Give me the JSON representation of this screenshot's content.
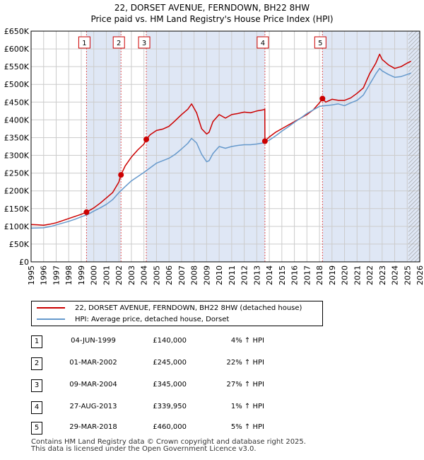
{
  "header": {
    "title_line1": "22, DORSET AVENUE, FERNDOWN, BH22 8HW",
    "title_line2": "Price paid vs. HM Land Registry's House Price Index (HPI)"
  },
  "chart_data": {
    "type": "line",
    "title": "22, DORSET AVENUE, FERNDOWN, BH22 8HW",
    "subtitle": "Price paid vs. HM Land Registry's House Price Index (HPI)",
    "xlabel": "",
    "ylabel": "",
    "xlim": [
      1995,
      2026
    ],
    "ylim": [
      0,
      650000
    ],
    "x_ticks": [
      1995,
      1996,
      1997,
      1998,
      1999,
      2000,
      2001,
      2002,
      2003,
      2004,
      2005,
      2006,
      2007,
      2008,
      2009,
      2010,
      2011,
      2012,
      2013,
      2014,
      2015,
      2016,
      2017,
      2018,
      2019,
      2020,
      2021,
      2022,
      2023,
      2024,
      2025,
      2026
    ],
    "y_ticks": [
      0,
      50000,
      100000,
      150000,
      200000,
      250000,
      300000,
      350000,
      400000,
      450000,
      500000,
      550000,
      600000,
      650000
    ],
    "y_tick_labels": [
      "£0",
      "£50K",
      "£100K",
      "£150K",
      "£200K",
      "£250K",
      "£300K",
      "£350K",
      "£400K",
      "£450K",
      "£500K",
      "£550K",
      "£600K",
      "£650K"
    ],
    "grid": true,
    "sale_periods_shaded": [
      [
        1999.42,
        2002.17
      ],
      [
        2004.19,
        2013.65
      ],
      [
        2018.24,
        2026
      ]
    ],
    "future_hatch_from": 2025.1,
    "series": [
      {
        "name": "22, DORSET AVENUE, FERNDOWN, BH22 8HW (detached house)",
        "color": "#cc0000",
        "x": [
          1995,
          1995.5,
          1996,
          1996.5,
          1997,
          1997.5,
          1998,
          1998.5,
          1999,
          1999.42,
          2000,
          2000.5,
          2001,
          2001.5,
          2002,
          2002.17,
          2002.5,
          2003,
          2003.5,
          2004,
          2004.19,
          2004.5,
          2005,
          2005.5,
          2006,
          2006.5,
          2007,
          2007.5,
          2007.8,
          2008.2,
          2008.6,
          2009,
          2009.2,
          2009.5,
          2010,
          2010.5,
          2011,
          2011.5,
          2012,
          2012.5,
          2013,
          2013.5,
          2013.64,
          2013.65,
          2014,
          2014.5,
          2015,
          2015.5,
          2016,
          2016.5,
          2017,
          2017.5,
          2018,
          2018.24,
          2018.5,
          2019,
          2019.5,
          2020,
          2020.5,
          2021,
          2021.5,
          2022,
          2022.5,
          2022.8,
          2023,
          2023.5,
          2024,
          2024.5,
          2025,
          2025.3
        ],
        "values": [
          105000,
          104500,
          103000,
          106000,
          110000,
          116000,
          122000,
          128000,
          134000,
          140000,
          152000,
          165000,
          180000,
          195000,
          225000,
          245000,
          270000,
          295000,
          315000,
          332000,
          345000,
          358000,
          370000,
          374000,
          382000,
          398000,
          415000,
          430000,
          445000,
          420000,
          375000,
          360000,
          365000,
          395000,
          415000,
          405000,
          415000,
          418000,
          422000,
          420000,
          425000,
          428000,
          430000,
          339950,
          352000,
          365000,
          375000,
          385000,
          395000,
          405000,
          415000,
          428000,
          448000,
          460000,
          450000,
          458000,
          455000,
          455000,
          462000,
          475000,
          490000,
          530000,
          560000,
          585000,
          570000,
          555000,
          545000,
          550000,
          560000,
          565000
        ]
      },
      {
        "name": "HPI: Average price, detached house, Dorset",
        "color": "#6699cc",
        "x": [
          1995,
          1995.5,
          1996,
          1996.5,
          1997,
          1997.5,
          1998,
          1998.5,
          1999,
          1999.5,
          2000,
          2000.5,
          2001,
          2001.5,
          2002,
          2002.5,
          2003,
          2003.5,
          2004,
          2004.5,
          2005,
          2005.5,
          2006,
          2006.5,
          2007,
          2007.5,
          2007.8,
          2008.2,
          2008.6,
          2009,
          2009.2,
          2009.5,
          2010,
          2010.5,
          2011,
          2011.5,
          2012,
          2012.5,
          2013,
          2013.5,
          2014,
          2014.5,
          2015,
          2015.5,
          2016,
          2016.5,
          2017,
          2017.5,
          2018,
          2018.5,
          2019,
          2019.5,
          2020,
          2020.5,
          2021,
          2021.5,
          2022,
          2022.5,
          2022.8,
          2023,
          2023.5,
          2024,
          2024.5,
          2025,
          2025.3
        ],
        "values": [
          95000,
          95500,
          96000,
          99000,
          104000,
          109000,
          114000,
          120000,
          127000,
          133000,
          143000,
          152000,
          162000,
          175000,
          195000,
          212000,
          228000,
          240000,
          252000,
          265000,
          278000,
          285000,
          292000,
          303000,
          318000,
          334000,
          348000,
          335000,
          303000,
          282000,
          285000,
          305000,
          325000,
          320000,
          325000,
          328000,
          330000,
          330000,
          332000,
          335000,
          343000,
          355000,
          368000,
          380000,
          393000,
          405000,
          418000,
          428000,
          438000,
          440000,
          442000,
          445000,
          440000,
          448000,
          455000,
          470000,
          500000,
          530000,
          545000,
          538000,
          528000,
          520000,
          522000,
          528000,
          532000
        ]
      }
    ],
    "sales": [
      {
        "num": "1",
        "x": 1999.42,
        "value": 140000
      },
      {
        "num": "2",
        "x": 2002.17,
        "value": 245000
      },
      {
        "num": "3",
        "x": 2004.19,
        "value": 345000
      },
      {
        "num": "4",
        "x": 2013.65,
        "value": 339950
      },
      {
        "num": "5",
        "x": 2018.24,
        "value": 460000
      }
    ]
  },
  "legend": {
    "property_label": "22, DORSET AVENUE, FERNDOWN, BH22 8HW (detached house)",
    "hpi_label": "HPI: Average price, detached house, Dorset"
  },
  "sales_table": [
    {
      "num": "1",
      "date": "04-JUN-1999",
      "price": "£140,000",
      "hpi": "4% ↑ HPI"
    },
    {
      "num": "2",
      "date": "01-MAR-2002",
      "price": "£245,000",
      "hpi": "22% ↑ HPI"
    },
    {
      "num": "3",
      "date": "09-MAR-2004",
      "price": "£345,000",
      "hpi": "27% ↑ HPI"
    },
    {
      "num": "4",
      "date": "27-AUG-2013",
      "price": "£339,950",
      "hpi": "1% ↑ HPI"
    },
    {
      "num": "5",
      "date": "29-MAR-2018",
      "price": "£460,000",
      "hpi": "5% ↑ HPI"
    }
  ],
  "footer": {
    "line1": "Contains HM Land Registry data © Crown copyright and database right 2025.",
    "line2": "This data is licensed under the Open Government Licence v3.0."
  }
}
